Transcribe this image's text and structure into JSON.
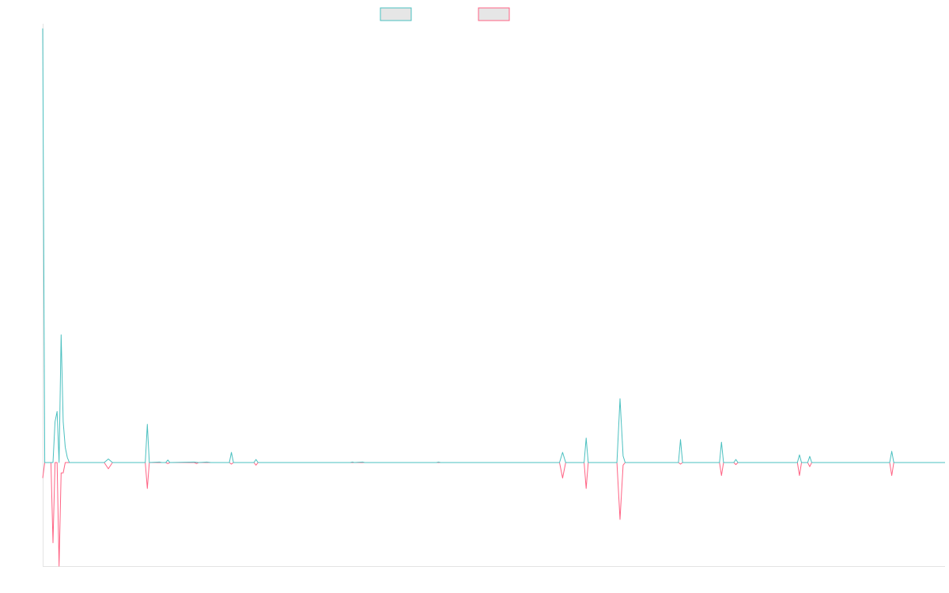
{
  "chart_data": {
    "type": "line",
    "title": "",
    "xlabel": "",
    "ylabel": "",
    "grid": false,
    "legend_position": "top-center",
    "ylim": [
      -0.2,
      0.85
    ],
    "series": [
      {
        "color": "#4bc0c0",
        "fill": "#e6e6e6",
        "points": [
          [
            0,
            0.85
          ],
          [
            2,
            0
          ],
          [
            10,
            0
          ],
          [
            12,
            0.08
          ],
          [
            14,
            0.1
          ],
          [
            16,
            0
          ],
          [
            18,
            0.25
          ],
          [
            20,
            0.08
          ],
          [
            22,
            0.03
          ],
          [
            24,
            0.01
          ],
          [
            26,
            0
          ],
          [
            60,
            0
          ],
          [
            64,
            0.007
          ],
          [
            68,
            0
          ],
          [
            100,
            0
          ],
          [
            102,
            0.075
          ],
          [
            104,
            0
          ],
          [
            114,
            0.001
          ],
          [
            116,
            0
          ],
          [
            120,
            0
          ],
          [
            122,
            0.005
          ],
          [
            124,
            0
          ],
          [
            148,
            0.001
          ],
          [
            152,
            0
          ],
          [
            160,
            0.001
          ],
          [
            164,
            0
          ],
          [
            182,
            0
          ],
          [
            184,
            0.02
          ],
          [
            186,
            0
          ],
          [
            206,
            0
          ],
          [
            208,
            0.006
          ],
          [
            210,
            0
          ],
          [
            300,
            0
          ],
          [
            302,
            0.001
          ],
          [
            304,
            0
          ],
          [
            312,
            0.001
          ],
          [
            314,
            0
          ],
          [
            384,
            0
          ],
          [
            386,
            0.001
          ],
          [
            388,
            0
          ],
          [
            504,
            0
          ],
          [
            507,
            0.02
          ],
          [
            510,
            0
          ],
          [
            528,
            0
          ],
          [
            530,
            0.048
          ],
          [
            532,
            0
          ],
          [
            560,
            0
          ],
          [
            563,
            0.125
          ],
          [
            566,
            0.013
          ],
          [
            568,
            0
          ],
          [
            620,
            0
          ],
          [
            622,
            0.045
          ],
          [
            624,
            0
          ],
          [
            660,
            0
          ],
          [
            662,
            0.04
          ],
          [
            664,
            0
          ],
          [
            674,
            0
          ],
          [
            676,
            0.006
          ],
          [
            678,
            0
          ],
          [
            736,
            0
          ],
          [
            738,
            0.015
          ],
          [
            740,
            0
          ],
          [
            746,
            0
          ],
          [
            748,
            0.012
          ],
          [
            750,
            0
          ],
          [
            826,
            0
          ],
          [
            828,
            0.022
          ],
          [
            830,
            0
          ],
          [
            880,
            0
          ]
        ]
      },
      {
        "color": "#ff6384",
        "fill": "#e6e6e6",
        "points": [
          [
            0,
            -0.03
          ],
          [
            2,
            0
          ],
          [
            8,
            0
          ],
          [
            10,
            -0.155
          ],
          [
            12,
            0
          ],
          [
            14,
            0
          ],
          [
            16,
            -0.2
          ],
          [
            18,
            -0.02
          ],
          [
            20,
            -0.02
          ],
          [
            22,
            0
          ],
          [
            60,
            0
          ],
          [
            64,
            -0.012
          ],
          [
            68,
            0
          ],
          [
            100,
            0
          ],
          [
            102,
            -0.05
          ],
          [
            104,
            0
          ],
          [
            120,
            0
          ],
          [
            122,
            -0.002
          ],
          [
            124,
            0
          ],
          [
            148,
            0
          ],
          [
            150,
            -0.002
          ],
          [
            152,
            0
          ],
          [
            182,
            0
          ],
          [
            184,
            -0.003
          ],
          [
            186,
            0
          ],
          [
            206,
            0
          ],
          [
            208,
            -0.005
          ],
          [
            210,
            0
          ],
          [
            504,
            0
          ],
          [
            507,
            -0.03
          ],
          [
            510,
            0
          ],
          [
            528,
            0
          ],
          [
            530,
            -0.05
          ],
          [
            532,
            0
          ],
          [
            560,
            0
          ],
          [
            563,
            -0.11
          ],
          [
            566,
            -0.005
          ],
          [
            568,
            0
          ],
          [
            620,
            0
          ],
          [
            622,
            -0.003
          ],
          [
            624,
            0
          ],
          [
            660,
            0
          ],
          [
            662,
            -0.025
          ],
          [
            664,
            0
          ],
          [
            674,
            0
          ],
          [
            676,
            -0.004
          ],
          [
            678,
            0
          ],
          [
            736,
            0
          ],
          [
            738,
            -0.025
          ],
          [
            740,
            0
          ],
          [
            746,
            0
          ],
          [
            748,
            -0.008
          ],
          [
            750,
            0
          ],
          [
            826,
            0
          ],
          [
            828,
            -0.025
          ],
          [
            830,
            0
          ],
          [
            880,
            0
          ]
        ]
      }
    ]
  }
}
